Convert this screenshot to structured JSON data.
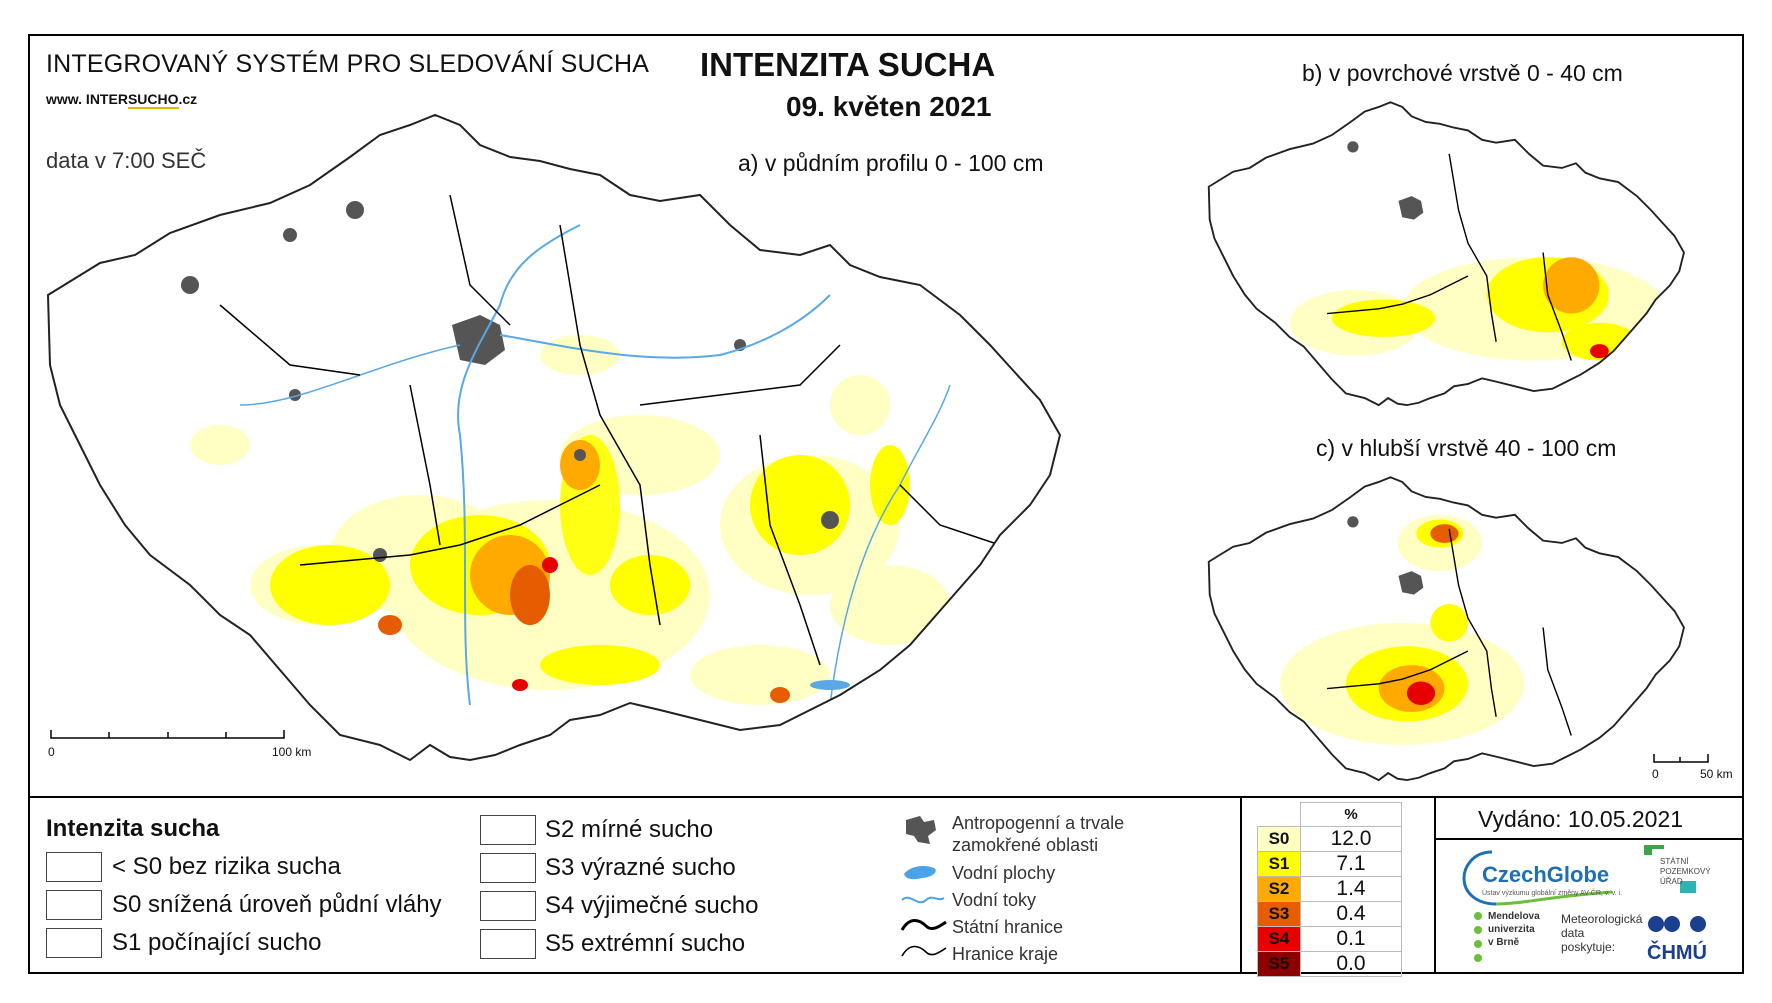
{
  "header": {
    "system_title": "INTEGROVANÝ SYSTÉM PRO SLEDOVÁNÍ SUCHA",
    "website_prefix": "www. INTER",
    "website_mid": "SUCHO",
    "website_suffix": ".cz",
    "data_time": "data v 7:00 SEČ",
    "title": "INTENZITA SUCHA",
    "date": "09. květen 2021"
  },
  "maps": {
    "a_subtitle": "a) v půdním profilu 0 - 100 cm",
    "b_subtitle": "b) v povrchové vrstvě 0 - 40 cm",
    "c_subtitle": "c) v hlubší vrstvě 40 - 100 cm",
    "main_scale": {
      "start": "0",
      "end": "100 km"
    },
    "small_scale": {
      "start": "0",
      "end": "50 km"
    }
  },
  "legend": {
    "title": "Intenzita sucha",
    "classes": [
      {
        "label": "< S0 bez rizika sucha",
        "color": "#ffffff"
      },
      {
        "label": "S0 snížená úroveň půdní vláhy",
        "color": "#ffffc4"
      },
      {
        "label": "S1 počínající sucho",
        "color": "#ffff00"
      },
      {
        "label": "S2 mírné sucho",
        "color": "#ffaa00"
      },
      {
        "label": "S3 výrazné sucho",
        "color": "#e65c00"
      },
      {
        "label": "S4 výjimečné sucho",
        "color": "#e60000"
      },
      {
        "label": "S5 extrémní sucho",
        "color": "#8b0000"
      }
    ],
    "features": [
      {
        "label_line1": "Antropogenní a trvale",
        "label_line2": "zamokřené oblasti",
        "icon": "urban-area-icon"
      },
      {
        "label": "Vodní plochy",
        "icon": "water-body-icon"
      },
      {
        "label": "Vodní toky",
        "icon": "river-icon"
      },
      {
        "label": "Státní hranice",
        "icon": "state-border-icon"
      },
      {
        "label": "Hranice kraje",
        "icon": "region-border-icon"
      }
    ]
  },
  "percent_table": {
    "header": "%",
    "rows": [
      {
        "cls": "S0",
        "value": "12.0",
        "color": "#ffffc4",
        "text_color": "#000"
      },
      {
        "cls": "S1",
        "value": "7.1",
        "color": "#ffff00",
        "text_color": "#000"
      },
      {
        "cls": "S2",
        "value": "1.4",
        "color": "#ffaa00",
        "text_color": "#000"
      },
      {
        "cls": "S3",
        "value": "0.4",
        "color": "#e65c00",
        "text_color": "#000"
      },
      {
        "cls": "S4",
        "value": "0.1",
        "color": "#e60000",
        "text_color": "#000"
      },
      {
        "cls": "S5",
        "value": "0.0",
        "color": "#8b0000",
        "text_color": "#000"
      }
    ]
  },
  "footer": {
    "issued": "Vydáno: 10.05.2021",
    "czechglobe": "CzechGlobe",
    "czechglobe_small": "Ústav výzkumu globální změny AV ČR, v. v. i.",
    "spu_line1": "STÁTNÍ",
    "spu_line2": "POZEMKOVÝ",
    "spu_line3": "ÚŘAD",
    "mendel_line1": "Mendelova",
    "mendel_line2": "univerzita",
    "mendel_line3": "v Brně",
    "meteo_line1": "Meteorologická",
    "meteo_line2": "data",
    "meteo_line3": "poskytuje:",
    "chmu": "ČHMÚ"
  }
}
